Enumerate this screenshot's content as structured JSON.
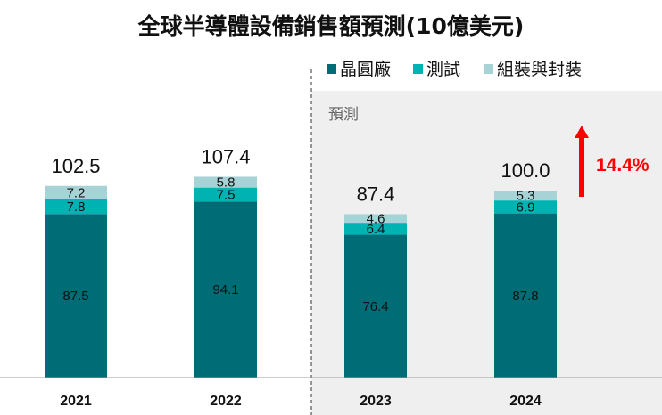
{
  "chart_data": {
    "type": "bar",
    "stacked": true,
    "title": "全球半導體設備銷售額預測(10億美元)",
    "categories": [
      "2021",
      "2022",
      "2023",
      "2024"
    ],
    "series": [
      {
        "name": "晶圓廠",
        "color": "#006c76",
        "values": [
          87.5,
          94.1,
          76.4,
          87.8
        ]
      },
      {
        "name": "測試",
        "color": "#00b3b3",
        "values": [
          7.8,
          7.5,
          6.4,
          6.9
        ]
      },
      {
        "name": "組裝與封裝",
        "color": "#a8d3d6",
        "values": [
          7.2,
          5.8,
          4.6,
          5.3
        ]
      }
    ],
    "totals": [
      "102.5",
      "107.4",
      "87.4",
      "100.0"
    ],
    "segment_labels": [
      [
        "87.5",
        "7.8",
        "7.2"
      ],
      [
        "94.1",
        "7.5",
        "5.8"
      ],
      [
        "76.4",
        "6.4",
        "4.6"
      ],
      [
        "87.8",
        "6.9",
        "5.3"
      ]
    ],
    "forecast": {
      "label": "預測",
      "categories": [
        "2023",
        "2024"
      ],
      "shade_color": "#efefef"
    },
    "growth_annotation": {
      "text": "14.4%",
      "color": "#ff0000",
      "category": "2024"
    },
    "ylim": [
      0,
      130
    ],
    "legend_position": "top-right",
    "grid": false
  }
}
